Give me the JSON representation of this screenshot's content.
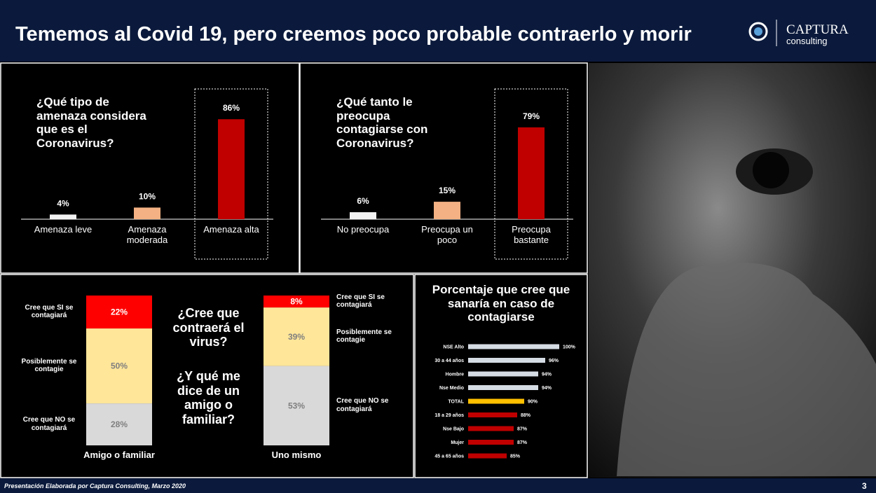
{
  "header": {
    "title": "Tememos al Covid 19, pero creemos poco probable contraerlo y morir",
    "logo_name": "CAPTURA",
    "logo_sub": "consulting"
  },
  "footer": {
    "text": "Presentación Elaborada por Captura Consulting, Marzo 2020",
    "page": "3"
  },
  "chart_data": [
    {
      "type": "bar",
      "title": "¿Qué tipo de amenaza considera que es el Coronavirus?",
      "categories": [
        "Amenaza leve",
        "Amenaza moderada",
        "Amenaza alta"
      ],
      "values": [
        4,
        10,
        86
      ],
      "value_labels": [
        "4%",
        "10%",
        "86%"
      ],
      "colors": [
        "#f2f2f2",
        "#f4b183",
        "#c00000"
      ],
      "ylim": [
        0,
        100
      ],
      "highlight": 2
    },
    {
      "type": "bar",
      "title": "¿Qué tanto le preocupa contagiarse con Coronavirus?",
      "categories": [
        "No preocupa",
        "Preocupa un poco",
        "Preocupa bastante"
      ],
      "values": [
        6,
        15,
        79
      ],
      "value_labels": [
        "6%",
        "15%",
        "79%"
      ],
      "colors": [
        "#f2f2f2",
        "#f4b183",
        "#c00000"
      ],
      "ylim": [
        0,
        100
      ],
      "highlight": 2
    },
    {
      "type": "stacked",
      "annotations": [
        "¿Cree que contraerá el virus?",
        "¿Y qué me dice de un amigo o familiar?"
      ],
      "categories": [
        "Amigo o familiar",
        "Uno mismo"
      ],
      "ylim": [
        0,
        100
      ],
      "series": [
        {
          "name": "Cree que SI se contagiará",
          "color": "#ff0000",
          "label_color": "#ffffff",
          "values": [
            22,
            8
          ],
          "value_labels": [
            "22%",
            "8%"
          ]
        },
        {
          "name": "Posiblemente se contagie",
          "color": "#ffe699",
          "label_color": "#7f7f7f",
          "values": [
            50,
            39
          ],
          "value_labels": [
            "50%",
            "39%"
          ]
        },
        {
          "name": "Cree que NO se contagiará",
          "color": "#d9d9d9",
          "label_color": "#7f7f7f",
          "values": [
            28,
            53
          ],
          "value_labels": [
            "28%",
            "53%"
          ]
        }
      ]
    },
    {
      "type": "hbar",
      "title": "Porcentaje que cree que sanaría en caso de contagiarse",
      "categories": [
        "NSE Alto",
        "30 a 44 años",
        "Hombre",
        "Nse Medio",
        "TOTAL",
        "18 a 29 años",
        "Nse Bajo",
        "Mujer",
        "45 a 65 años"
      ],
      "values": [
        100,
        96,
        94,
        94,
        90,
        88,
        87,
        87,
        85
      ],
      "value_labels": [
        "100%",
        "96%",
        "94%",
        "94%",
        "90%",
        "88%",
        "87%",
        "87%",
        "85%"
      ],
      "colors": [
        "#d6dce4",
        "#d6dce4",
        "#d6dce4",
        "#d6dce4",
        "#ffc000",
        "#c00000",
        "#c00000",
        "#c00000",
        "#c00000"
      ],
      "xlim": [
        74,
        100
      ]
    }
  ]
}
